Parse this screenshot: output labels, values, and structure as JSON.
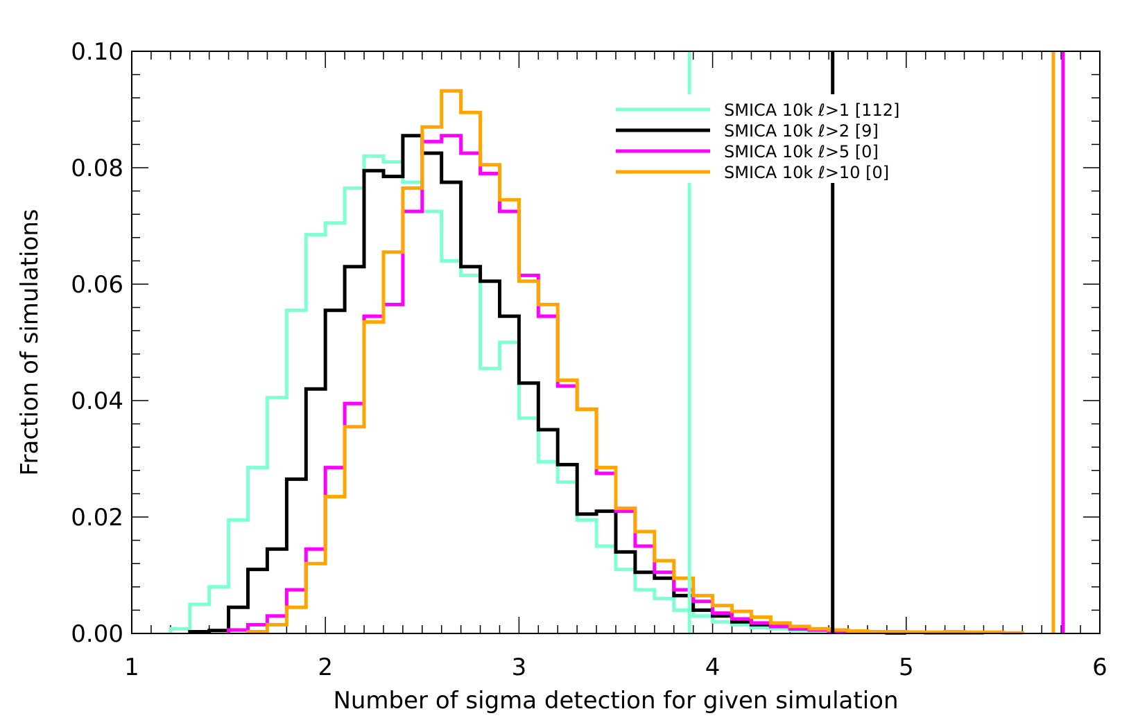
{
  "chart_data": {
    "type": "line",
    "style": "step histogram",
    "xlabel": "Number of sigma detection for given simulation",
    "ylabel": "Fraction of simulations",
    "xlim": [
      1,
      6
    ],
    "ylim": [
      0,
      0.1
    ],
    "xticks": [
      "1",
      "2",
      "3",
      "4",
      "5",
      "6"
    ],
    "yticks": [
      "0.00",
      "0.02",
      "0.04",
      "0.06",
      "0.08",
      "0.10"
    ],
    "bin_width": 0.1,
    "series": [
      {
        "name": "SMICA 10k ℓ>1 [112]",
        "color": "#7fffd4",
        "observed_sigma": 3.88,
        "bins": [
          [
            1.2,
            0.0008
          ],
          [
            1.3,
            0.005
          ],
          [
            1.4,
            0.008
          ],
          [
            1.5,
            0.0195
          ],
          [
            1.6,
            0.0285
          ],
          [
            1.7,
            0.0405
          ],
          [
            1.8,
            0.0555
          ],
          [
            1.9,
            0.0685
          ],
          [
            2.0,
            0.0705
          ],
          [
            2.1,
            0.0765
          ],
          [
            2.2,
            0.082
          ],
          [
            2.3,
            0.081
          ],
          [
            2.4,
            0.0775
          ],
          [
            2.5,
            0.0725
          ],
          [
            2.6,
            0.064
          ],
          [
            2.7,
            0.0615
          ],
          [
            2.8,
            0.0455
          ],
          [
            2.9,
            0.05
          ],
          [
            3.0,
            0.037
          ],
          [
            3.1,
            0.0295
          ],
          [
            3.2,
            0.026
          ],
          [
            3.3,
            0.0195
          ],
          [
            3.4,
            0.015
          ],
          [
            3.5,
            0.011
          ],
          [
            3.6,
            0.0075
          ],
          [
            3.7,
            0.006
          ],
          [
            3.8,
            0.004
          ],
          [
            3.9,
            0.003
          ],
          [
            4.0,
            0.002
          ],
          [
            4.1,
            0.0015
          ],
          [
            4.2,
            0.001
          ],
          [
            4.3,
            0.0008
          ],
          [
            4.4,
            0.0005
          ],
          [
            4.5,
            0.0004
          ]
        ]
      },
      {
        "name": "SMICA 10k ℓ>2 [9]",
        "color": "#000000",
        "observed_sigma": 4.62,
        "bins": [
          [
            1.3,
            0.0003
          ],
          [
            1.4,
            0.0005
          ],
          [
            1.5,
            0.0045
          ],
          [
            1.6,
            0.011
          ],
          [
            1.7,
            0.0145
          ],
          [
            1.8,
            0.0265
          ],
          [
            1.9,
            0.042
          ],
          [
            2.0,
            0.0555
          ],
          [
            2.1,
            0.063
          ],
          [
            2.2,
            0.0795
          ],
          [
            2.3,
            0.0785
          ],
          [
            2.4,
            0.0855
          ],
          [
            2.5,
            0.0825
          ],
          [
            2.6,
            0.0775
          ],
          [
            2.7,
            0.063
          ],
          [
            2.8,
            0.0605
          ],
          [
            2.9,
            0.0545
          ],
          [
            3.0,
            0.043
          ],
          [
            3.1,
            0.035
          ],
          [
            3.2,
            0.029
          ],
          [
            3.3,
            0.0205
          ],
          [
            3.4,
            0.021
          ],
          [
            3.5,
            0.014
          ],
          [
            3.6,
            0.0105
          ],
          [
            3.7,
            0.0095
          ],
          [
            3.8,
            0.0065
          ],
          [
            3.9,
            0.004
          ],
          [
            4.0,
            0.003
          ],
          [
            4.1,
            0.002
          ],
          [
            4.2,
            0.0015
          ],
          [
            4.3,
            0.0012
          ],
          [
            4.4,
            0.0008
          ],
          [
            4.5,
            0.0006
          ],
          [
            4.6,
            0.0004
          ],
          [
            4.7,
            0.0002
          ],
          [
            4.8,
            0.0002
          ],
          [
            4.9,
            0.0001
          ]
        ]
      },
      {
        "name": "SMICA 10k ℓ>5 [0]",
        "color": "#ff00ff",
        "observed_sigma": 5.81,
        "bins": [
          [
            1.5,
            0.0006
          ],
          [
            1.6,
            0.0015
          ],
          [
            1.7,
            0.003
          ],
          [
            1.8,
            0.0075
          ],
          [
            1.9,
            0.0145
          ],
          [
            2.0,
            0.0285
          ],
          [
            2.1,
            0.0395
          ],
          [
            2.2,
            0.0545
          ],
          [
            2.3,
            0.0565
          ],
          [
            2.4,
            0.0725
          ],
          [
            2.5,
            0.0845
          ],
          [
            2.6,
            0.0855
          ],
          [
            2.7,
            0.0825
          ],
          [
            2.8,
            0.079
          ],
          [
            2.9,
            0.0725
          ],
          [
            3.0,
            0.0615
          ],
          [
            3.1,
            0.0545
          ],
          [
            3.2,
            0.0425
          ],
          [
            3.3,
            0.0385
          ],
          [
            3.4,
            0.0275
          ],
          [
            3.5,
            0.021
          ],
          [
            3.6,
            0.015
          ],
          [
            3.7,
            0.0105
          ],
          [
            3.8,
            0.0075
          ],
          [
            3.9,
            0.0055
          ],
          [
            4.0,
            0.0035
          ],
          [
            4.1,
            0.0025
          ],
          [
            4.2,
            0.0018
          ],
          [
            4.3,
            0.0012
          ],
          [
            4.4,
            0.0008
          ],
          [
            4.5,
            0.0006
          ],
          [
            4.6,
            0.0004
          ],
          [
            4.7,
            0.0003
          ],
          [
            4.8,
            0.0003
          ],
          [
            4.9,
            0.0002
          ],
          [
            5.0,
            0.0002
          ],
          [
            5.1,
            0.0001
          ],
          [
            5.2,
            0.0001
          ],
          [
            5.3,
            0.0001
          ]
        ]
      },
      {
        "name": "SMICA 10k ℓ>10 [0]",
        "color": "#ffa500",
        "observed_sigma": 5.76,
        "bins": [
          [
            1.6,
            0.0003
          ],
          [
            1.7,
            0.0015
          ],
          [
            1.8,
            0.0045
          ],
          [
            1.9,
            0.012
          ],
          [
            2.0,
            0.0235
          ],
          [
            2.1,
            0.0355
          ],
          [
            2.2,
            0.0535
          ],
          [
            2.3,
            0.0655
          ],
          [
            2.4,
            0.0765
          ],
          [
            2.5,
            0.087
          ],
          [
            2.6,
            0.0932
          ],
          [
            2.7,
            0.0895
          ],
          [
            2.8,
            0.0805
          ],
          [
            2.9,
            0.0745
          ],
          [
            3.0,
            0.0605
          ],
          [
            3.1,
            0.0565
          ],
          [
            3.2,
            0.0435
          ],
          [
            3.3,
            0.0385
          ],
          [
            3.4,
            0.0285
          ],
          [
            3.5,
            0.0215
          ],
          [
            3.6,
            0.0175
          ],
          [
            3.7,
            0.0125
          ],
          [
            3.8,
            0.0095
          ],
          [
            3.9,
            0.0065
          ],
          [
            4.0,
            0.0048
          ],
          [
            4.1,
            0.0038
          ],
          [
            4.2,
            0.0028
          ],
          [
            4.3,
            0.0018
          ],
          [
            4.4,
            0.0012
          ],
          [
            4.5,
            0.0008
          ],
          [
            4.6,
            0.0006
          ],
          [
            4.7,
            0.0004
          ],
          [
            4.8,
            0.0003
          ],
          [
            4.9,
            0.0003
          ],
          [
            5.0,
            0.0002
          ],
          [
            5.1,
            0.0002
          ],
          [
            5.2,
            0.0003
          ],
          [
            5.3,
            0.0002
          ],
          [
            5.4,
            0.0002
          ],
          [
            5.5,
            0.0001
          ]
        ]
      }
    ],
    "legend": {
      "placement": "top-right",
      "entries": [
        {
          "prefix": "SMICA 10k ",
          "ell": "ℓ",
          "suffix": ">1 [112]",
          "color": "#7fffd4"
        },
        {
          "prefix": "SMICA 10k ",
          "ell": "ℓ",
          "suffix": ">2 [9]",
          "color": "#000000"
        },
        {
          "prefix": "SMICA 10k ",
          "ell": "ℓ",
          "suffix": ">5 [0]",
          "color": "#ff00ff"
        },
        {
          "prefix": "SMICA 10k ",
          "ell": "ℓ",
          "suffix": ">10 [0]",
          "color": "#ffa500"
        }
      ]
    }
  }
}
